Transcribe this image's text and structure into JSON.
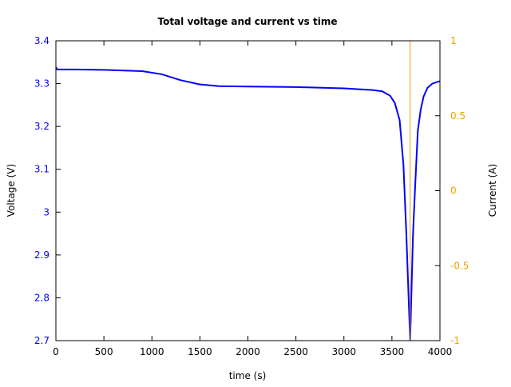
{
  "chart_data": {
    "type": "line",
    "title": "Total voltage and current vs time",
    "xlabel": "time (s)",
    "ylabel": "Voltage (V)",
    "y2label": "Current (A)",
    "xlim": [
      0,
      4000
    ],
    "ylim": [
      2.7,
      3.4
    ],
    "y2lim": [
      -1,
      1
    ],
    "xticks": [
      "0",
      "500",
      "1000",
      "1500",
      "2000",
      "2500",
      "3000",
      "3500",
      "4000"
    ],
    "xtick_values": [
      0,
      500,
      1000,
      1500,
      2000,
      2500,
      3000,
      3500,
      4000
    ],
    "yticks": [
      "2.7",
      "2.8",
      "2.9",
      "3",
      "3.1",
      "3.2",
      "3.3",
      "3.4"
    ],
    "ytick_values": [
      2.7,
      2.8,
      2.9,
      3.0,
      3.1,
      3.2,
      3.3,
      3.4
    ],
    "y2ticks": [
      "-1",
      "-0.5",
      "0",
      "0.5",
      "1"
    ],
    "y2tick_values": [
      -1,
      -0.5,
      0,
      0.5,
      1
    ],
    "grid": false,
    "colors": {
      "voltage": "#0000ff",
      "current": "#f0a000",
      "axis": "#000000"
    },
    "series": [
      {
        "name": "Voltage",
        "axis": "left",
        "x": [
          0,
          15,
          200,
          500,
          900,
          1100,
          1300,
          1500,
          1700,
          2000,
          2500,
          3000,
          3300,
          3400,
          3480,
          3530,
          3580,
          3620,
          3650,
          3690,
          3720,
          3740,
          3770,
          3800,
          3830,
          3870,
          3920,
          4000
        ],
        "y": [
          3.338,
          3.333,
          3.333,
          3.332,
          3.329,
          3.322,
          3.308,
          3.298,
          3.294,
          3.293,
          3.292,
          3.289,
          3.285,
          3.282,
          3.272,
          3.255,
          3.215,
          3.11,
          2.95,
          2.7,
          2.95,
          3.05,
          3.19,
          3.24,
          3.27,
          3.29,
          3.3,
          3.306
        ]
      },
      {
        "name": "Current",
        "axis": "right",
        "x": [
          3690,
          3690
        ],
        "y": [
          -1,
          1
        ]
      }
    ]
  }
}
